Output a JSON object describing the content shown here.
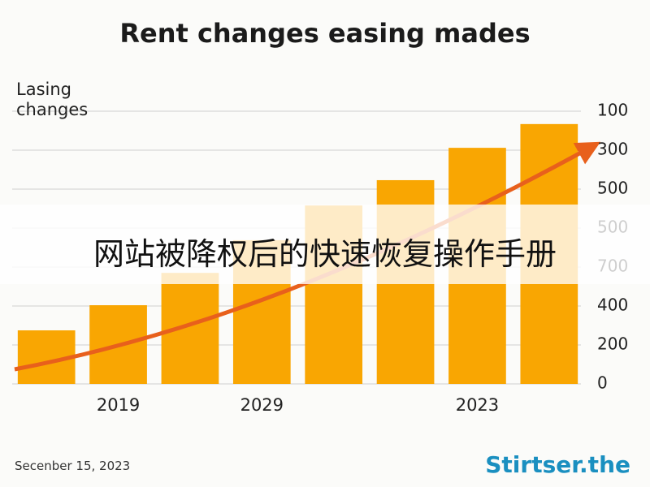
{
  "chart_data": {
    "type": "bar",
    "title": "Rent changes easing mades",
    "y_label": "Lasing changes",
    "categories": [
      null,
      "2019",
      null,
      "2029",
      null,
      null,
      "2023",
      null
    ],
    "values": [
      1.375,
      2.02,
      2.85,
      3.69,
      4.58,
      5.23,
      6.06,
      6.67
    ],
    "color": "#f9a602",
    "ylim": [
      0,
      7
    ],
    "yticks": [
      {
        "value": 0,
        "label": "0"
      },
      {
        "value": 1,
        "label": "200"
      },
      {
        "value": 2,
        "label": "400"
      },
      {
        "value": 3,
        "label": "700"
      },
      {
        "value": 4,
        "label": "500"
      },
      {
        "value": 5,
        "label": "500"
      },
      {
        "value": 6,
        "label": "300"
      },
      {
        "value": 7,
        "label": "100"
      }
    ],
    "grid": true
  },
  "overlay": {
    "banner": "网站被降权后的快速恢复操作手册"
  },
  "footer": {
    "date": "Secenber 15, 2023",
    "logo": "Stirtser.the"
  }
}
